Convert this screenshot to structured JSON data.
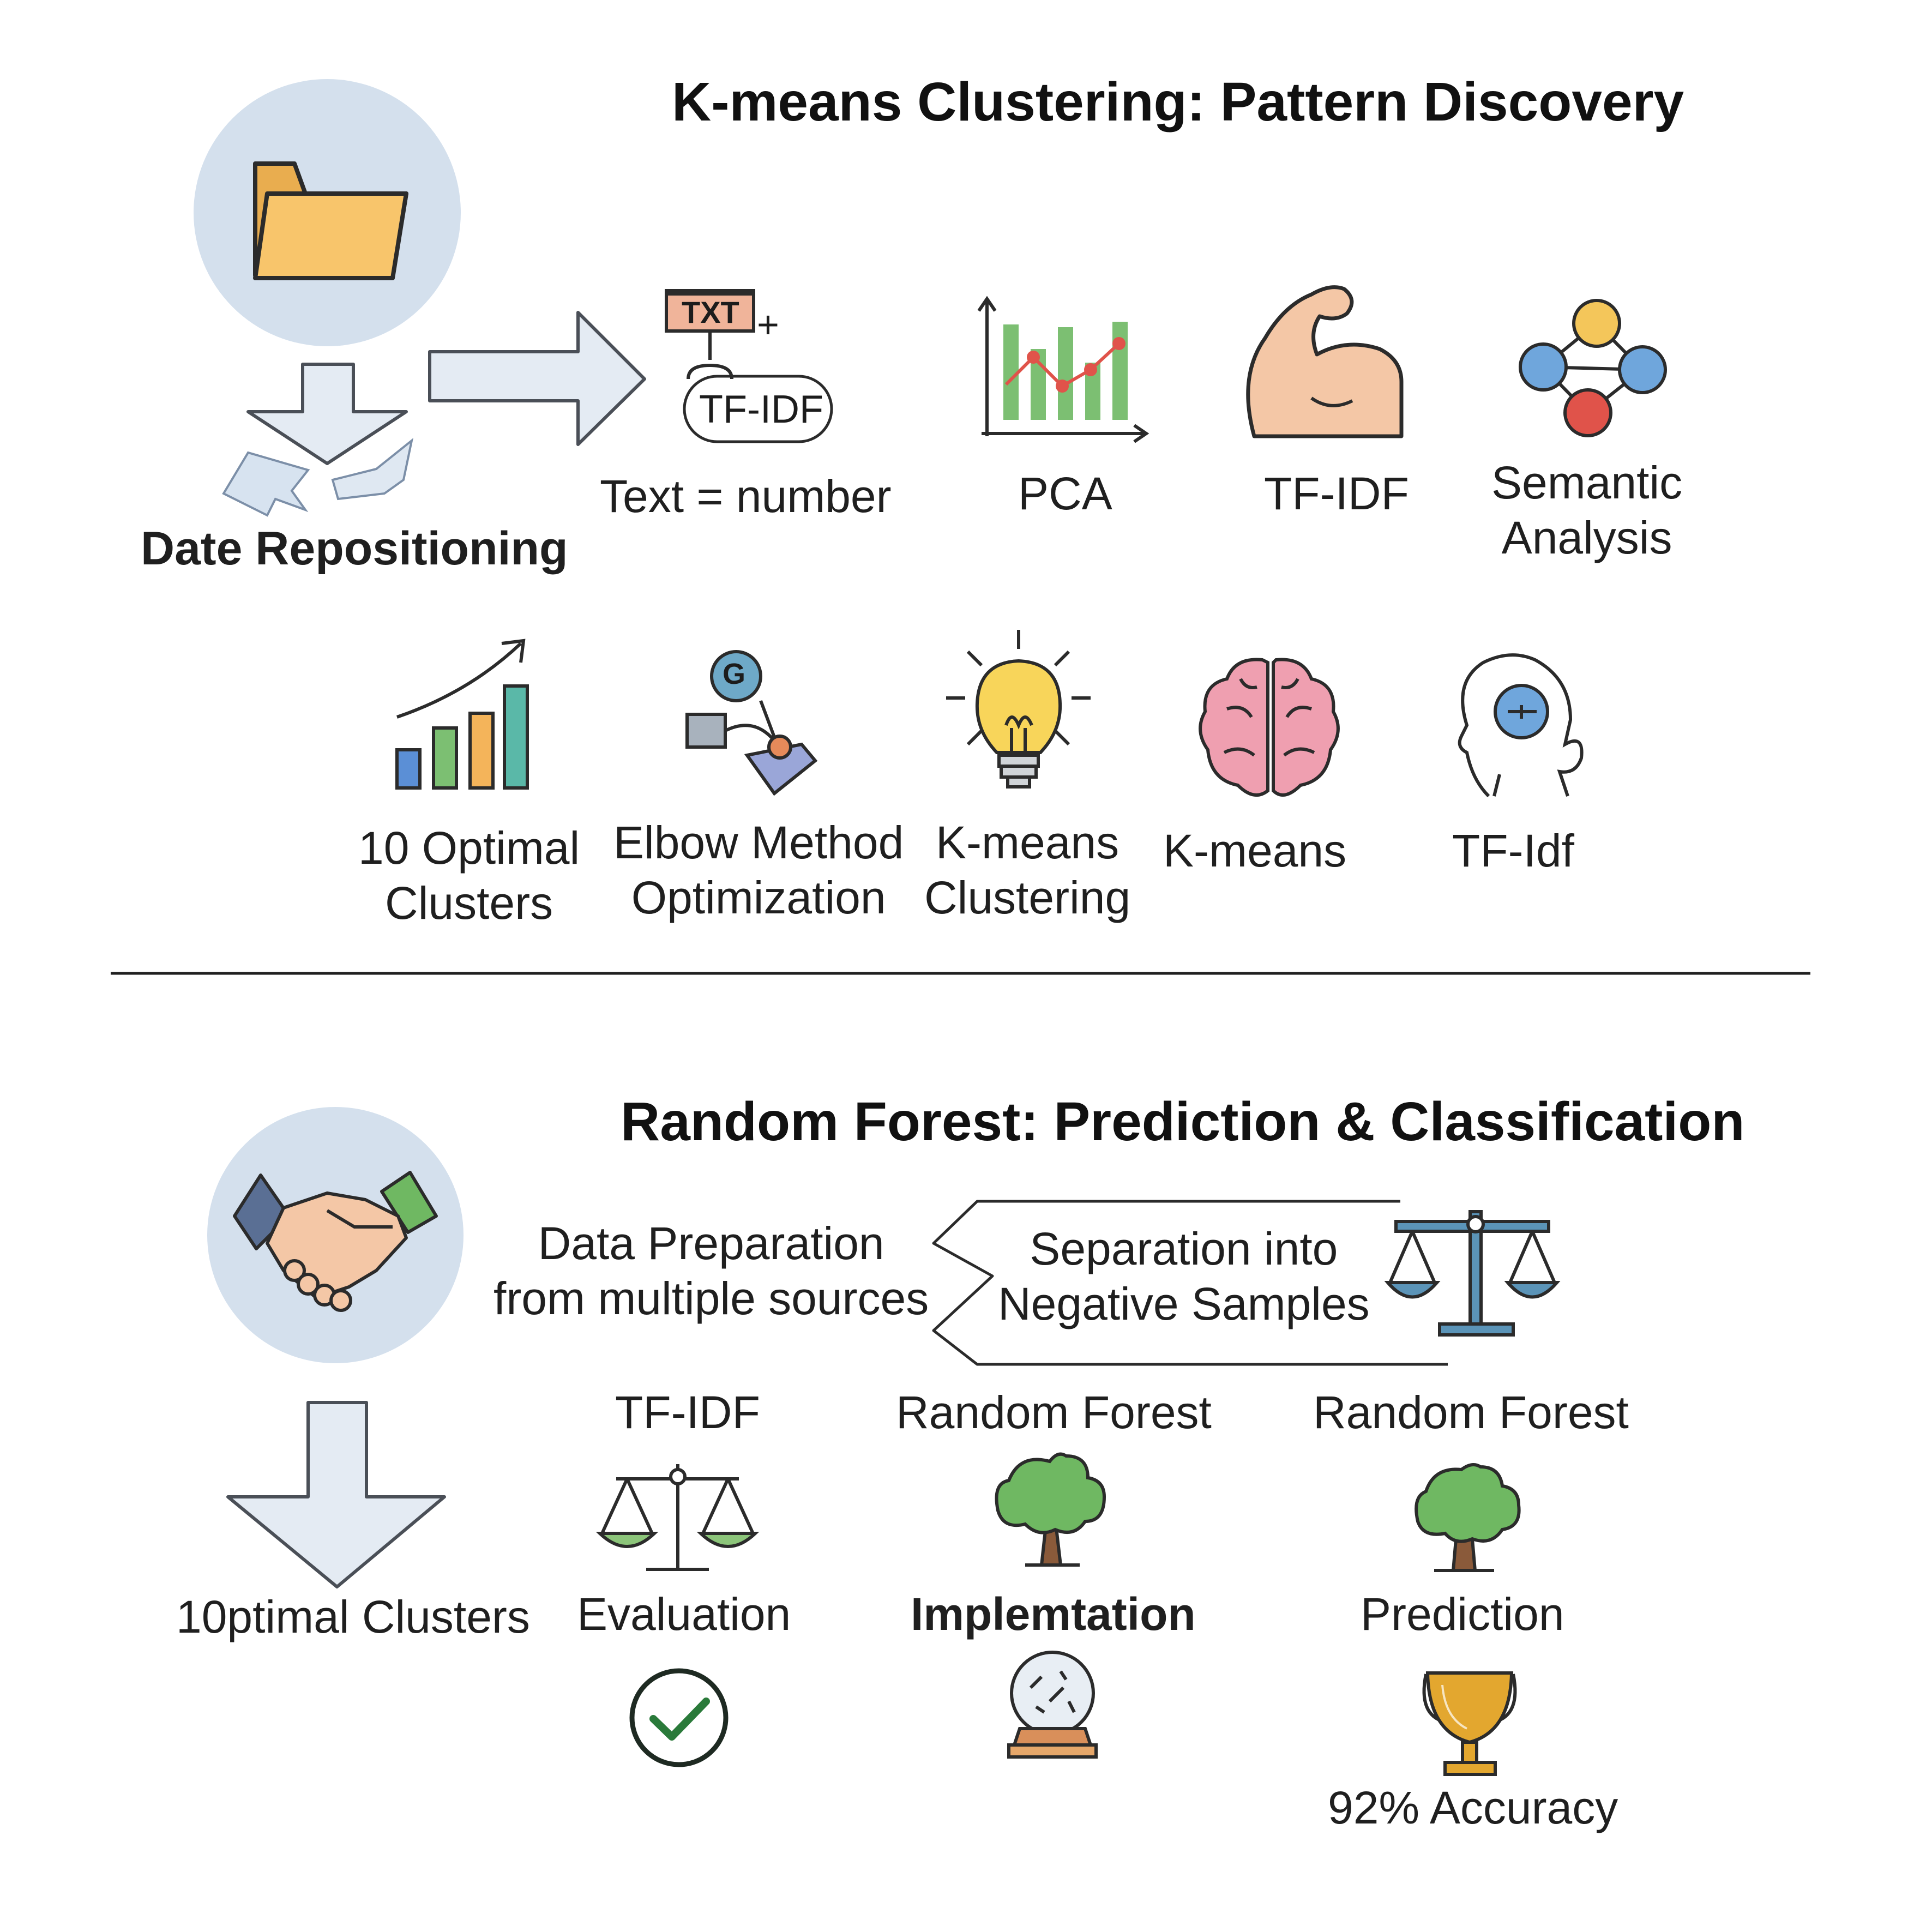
{
  "kmeans": {
    "title": "K-means Clustering: Pattern Discovery",
    "date_repositioning": "Date Repositioning",
    "txt_icon_text": "TXT",
    "txt_plus": "+",
    "tfidf_tag": "TF-IDF",
    "text_number": "Text = number",
    "pca": "PCA",
    "tfidf": "TF-IDF",
    "semantic_line1": "Semantic",
    "semantic_line2": "Analysis",
    "optimal_line1": "10 Optimal",
    "optimal_line2": "Clusters",
    "elbow_line1": "Elbow Method",
    "elbow_line2": "Optimization",
    "elbow_bubble": "G",
    "kmeans_clust_line1": "K-means",
    "kmeans_clust_line2": "Clustering",
    "kmeans": "K-means",
    "tf_idf_lower": "TF-Idf"
  },
  "random_forest": {
    "title": "Random Forest: Prediction & Classification",
    "data_prep_line1": "Data Preparation",
    "data_prep_line2": "from multiple sources",
    "separation_line1": "Separation into",
    "separation_line2": "Negative Samples",
    "optimal_clusters": "10ptimal Clusters",
    "tfidf": "TF-IDF",
    "evaluation": "Evaluation",
    "rf_label_1": "Random Forest",
    "implementation": "Implemtation",
    "rf_label_2": "Random Forest",
    "prediction": "Prediction",
    "accuracy": "92% Accuracy"
  },
  "colors": {
    "circle_bg": "#d4e0ed",
    "arrow_fill": "#e4ebf3",
    "arrow_stroke": "#4a4f57",
    "folder": "#f8c56b",
    "green_bar": "#7cbf72",
    "red_point": "#e0534a",
    "skin": "#f4c7a6",
    "node_yellow": "#f4c65a",
    "node_blue": "#6fa6dc",
    "node_red": "#e0534a",
    "bar_blue": "#5b8fd6",
    "bar_green": "#7cbf72",
    "bar_orange": "#f4b45a",
    "bar_teal": "#5ab8a8",
    "bulb": "#f8d55a",
    "brain": "#ef9fb0",
    "scale_blue": "#5b94b8",
    "scale_green": "#8cc57a",
    "tree_green": "#6fb862",
    "trunk": "#8a5a3a",
    "trophy": "#e3a72f",
    "check": "#2a7a3a"
  }
}
